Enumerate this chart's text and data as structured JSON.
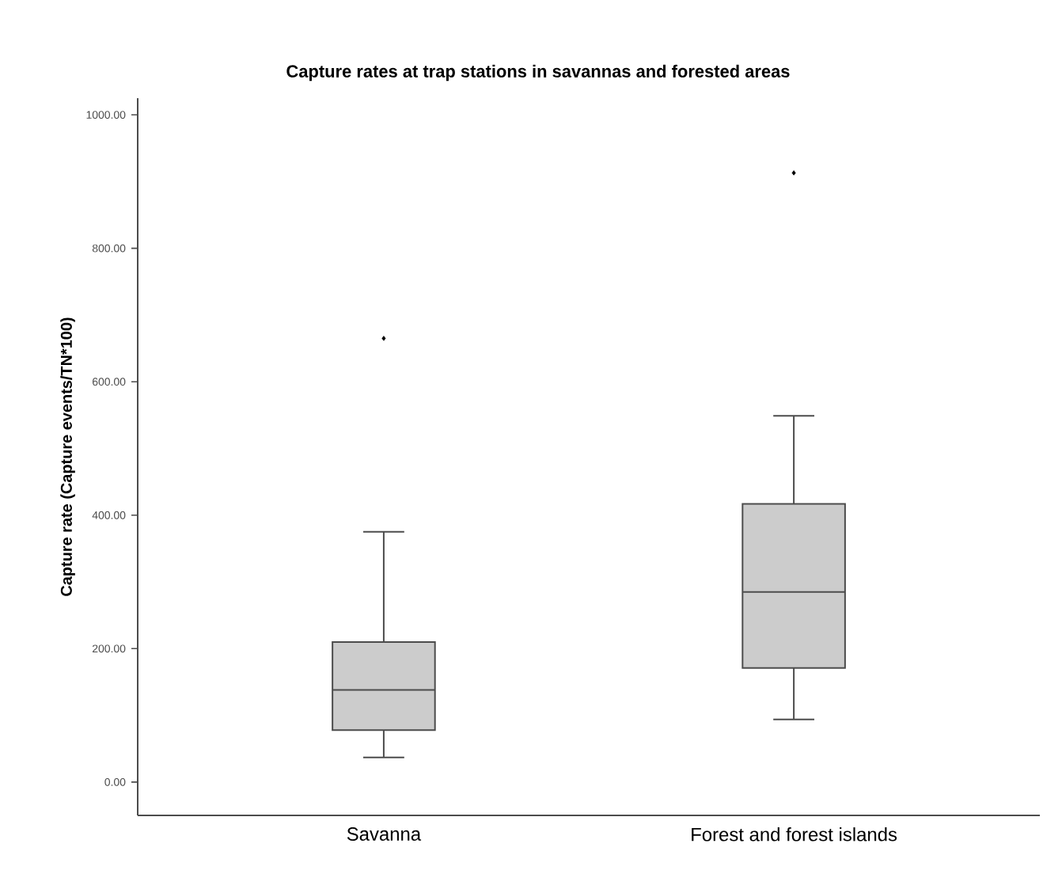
{
  "chart_data": {
    "type": "box",
    "title": "Capture rates at trap stations in savannas and forested areas",
    "ylabel": "Capture rate (Capture events/TN*100)",
    "categories": [
      "Savanna",
      "Forest and forest islands"
    ],
    "boxes": [
      {
        "low": 37,
        "q1": 78,
        "median": 138,
        "q3": 210,
        "high": 375,
        "outliers": [
          665
        ]
      },
      {
        "low": 94,
        "q1": 171,
        "median": 285,
        "q3": 417,
        "high": 549,
        "outliers": [
          913
        ]
      }
    ],
    "color": "#cccccc",
    "marker": "diamond",
    "ylim": [
      -50,
      1025
    ],
    "yticks": [
      {
        "value": 0,
        "label": "0.00"
      },
      {
        "value": 200,
        "label": "200.00"
      },
      {
        "value": 400,
        "label": "400.00"
      },
      {
        "value": 600,
        "label": "600.00"
      },
      {
        "value": 800,
        "label": "800.00"
      },
      {
        "value": 1000,
        "label": "1000.00"
      }
    ]
  }
}
